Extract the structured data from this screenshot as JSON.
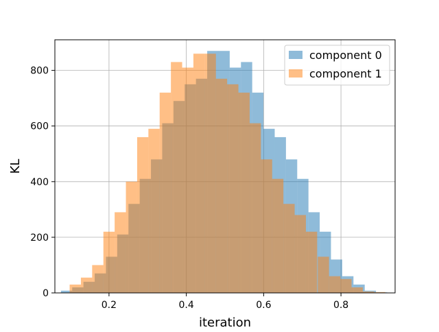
{
  "chart_data": {
    "type": "histogram",
    "title": "",
    "xlabel": "iteration",
    "ylabel": "KL",
    "xlim": [
      0.06,
      0.94
    ],
    "ylim": [
      0,
      910
    ],
    "xticks": [
      0.2,
      0.4,
      0.6,
      0.8
    ],
    "xtick_labels": [
      "0.2",
      "0.4",
      "0.6",
      "0.8"
    ],
    "yticks": [
      0,
      200,
      400,
      600,
      800
    ],
    "ytick_labels": [
      "0",
      "200",
      "400",
      "600",
      "800"
    ],
    "grid": true,
    "legend_position": "upper right",
    "bin_width": 0.0291,
    "series": [
      {
        "name": "component 0",
        "color": "#1f77b4",
        "alpha": 0.5,
        "bin_starts": [
          0.0757,
          0.1048,
          0.1339,
          0.163,
          0.1921,
          0.2212,
          0.2503,
          0.2794,
          0.3085,
          0.3376,
          0.3667,
          0.3958,
          0.4249,
          0.454,
          0.4831,
          0.5122,
          0.5413,
          0.5704,
          0.5995,
          0.6286,
          0.6577,
          0.6868,
          0.7159,
          0.745,
          0.7741,
          0.8032,
          0.8323,
          0.8614,
          0.8905
        ],
        "counts": [
          8,
          20,
          40,
          70,
          130,
          210,
          320,
          410,
          480,
          610,
          690,
          750,
          770,
          870,
          870,
          810,
          830,
          720,
          590,
          560,
          480,
          410,
          290,
          220,
          120,
          60,
          30,
          8,
          2
        ]
      },
      {
        "name": "component 1",
        "color": "#ff7f0e",
        "alpha": 0.5,
        "bin_starts": [
          0.0982,
          0.1273,
          0.1564,
          0.1855,
          0.2146,
          0.2437,
          0.2728,
          0.3019,
          0.331,
          0.3601,
          0.3892,
          0.4183,
          0.4474,
          0.4765,
          0.5056,
          0.5347,
          0.5638,
          0.5929,
          0.622,
          0.6511,
          0.6802,
          0.7093,
          0.74,
          0.7692,
          0.7983,
          0.8274,
          0.8565,
          0.8856
        ],
        "counts": [
          30,
          55,
          100,
          220,
          290,
          400,
          560,
          590,
          720,
          830,
          810,
          860,
          860,
          770,
          750,
          720,
          610,
          480,
          410,
          320,
          280,
          220,
          130,
          60,
          50,
          20,
          5,
          3
        ]
      }
    ]
  }
}
